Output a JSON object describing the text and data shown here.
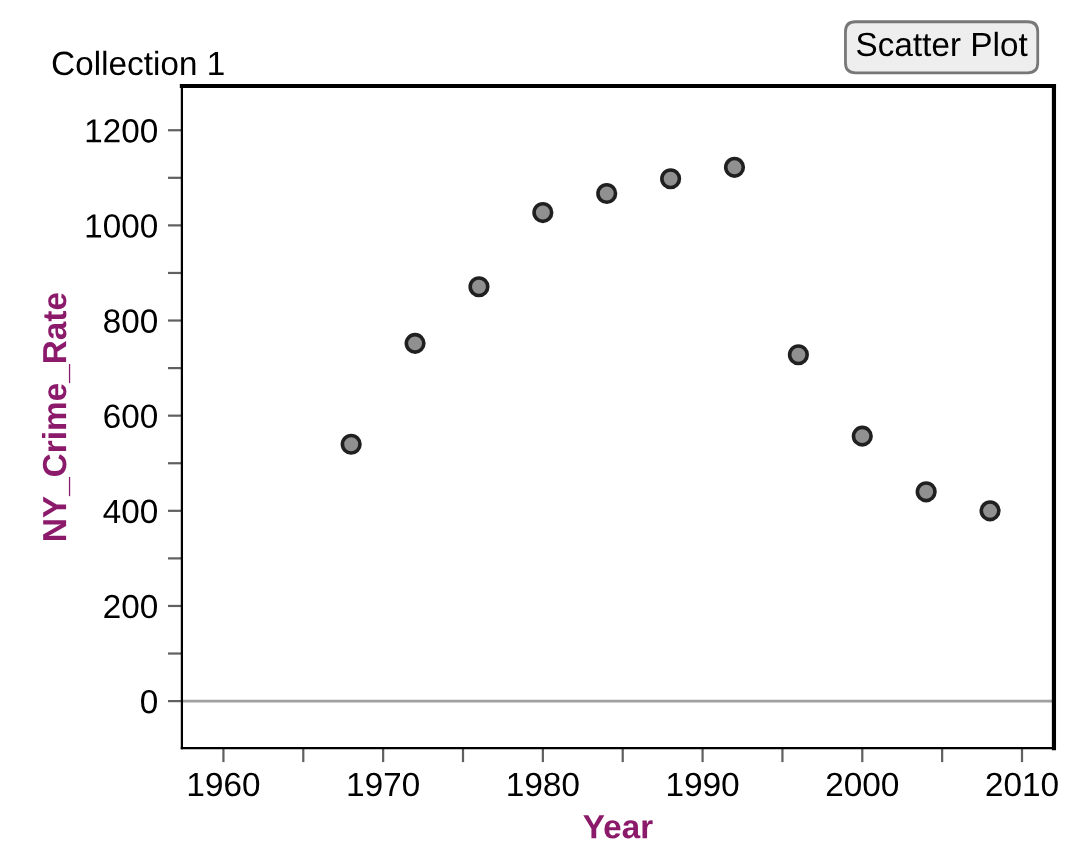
{
  "chart_data": {
    "type": "scatter",
    "title": "Collection 1",
    "annotations": [
      "Scatter Plot"
    ],
    "xlabel": "Year",
    "ylabel": "NY_Crime_Rate",
    "x": [
      1968,
      1972,
      1976,
      1980,
      1984,
      1988,
      1992,
      1996,
      2000,
      2004,
      2008
    ],
    "series": [
      {
        "color": "#909090",
        "values": [
          540,
          752,
          871,
          1027,
          1067,
          1098,
          1122,
          728,
          557,
          440,
          400
        ]
      }
    ],
    "marker": "circle",
    "grid": false,
    "legend": false,
    "xlim": [
      1957.4,
      2012
    ],
    "ylim": [
      -99,
      1293
    ],
    "xticks": [
      1960,
      {
        "value": 1965,
        "label": null
      },
      1970,
      {
        "value": 1975,
        "label": null
      },
      1980,
      {
        "value": 1985,
        "label": null
      },
      1990,
      {
        "value": 1995,
        "label": null
      },
      2000,
      {
        "value": 2005,
        "label": null
      },
      2010
    ],
    "yticks": [
      0,
      {
        "value": 100,
        "label": null
      },
      200,
      {
        "value": 300,
        "label": null
      },
      400,
      {
        "value": 500,
        "label": null
      },
      600,
      {
        "value": 700,
        "label": null
      },
      800,
      {
        "value": 900,
        "label": null
      },
      1000,
      {
        "value": 1100,
        "label": null
      },
      1200
    ],
    "ref_lines": [
      {
        "axis": "y",
        "value": 0,
        "color": "#a0a0a0"
      }
    ]
  }
}
